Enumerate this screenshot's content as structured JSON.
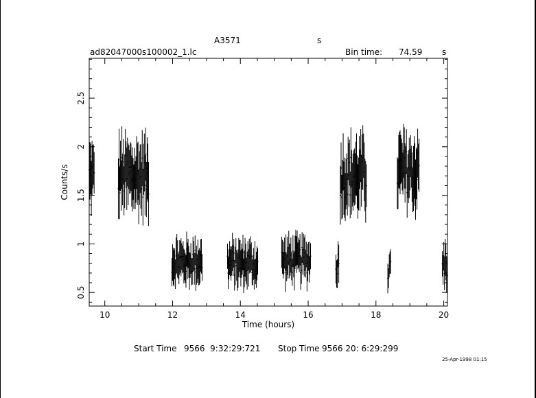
{
  "header": {
    "object": "A3571",
    "units_label": "s",
    "filename": "ad82047000s100002_1.lc",
    "bin_time_label": "Bin time:",
    "bin_time_value": "74.59",
    "bin_time_unit": "s"
  },
  "footer": {
    "start_label": "Start Time",
    "start_value": "9566  9:32:29:721",
    "stop_label": "Stop Time",
    "stop_value": "9566 20: 6:29:299",
    "date_stamp": "25-Apr-1998 01:15"
  },
  "chart_data": {
    "type": "scatter",
    "xlabel": "Time (hours)",
    "ylabel": "Counts/s",
    "xlim": [
      9.54,
      20.11
    ],
    "ylim": [
      0.36,
      2.91
    ],
    "x_ticks": [
      10,
      12,
      14,
      16,
      18,
      20
    ],
    "x_tick_labels": [
      "10",
      "12",
      "14",
      "16",
      "18",
      "20"
    ],
    "y_ticks": [
      0.5,
      1,
      1.5,
      2,
      2.5
    ],
    "y_tick_labels": [
      "0.5",
      "1",
      "1.5",
      "2",
      "2.5"
    ],
    "grid": false,
    "error_bars": true,
    "segments": [
      {
        "start": 9.54,
        "end": 9.7,
        "mean": 1.7,
        "err": 0.22
      },
      {
        "start": 10.4,
        "end": 11.3,
        "mean": 1.7,
        "err": 0.25
      },
      {
        "start": 11.98,
        "end": 12.88,
        "mean": 0.82,
        "err": 0.15
      },
      {
        "start": 13.62,
        "end": 14.52,
        "mean": 0.8,
        "err": 0.15
      },
      {
        "start": 15.22,
        "end": 16.08,
        "mean": 0.83,
        "err": 0.15
      },
      {
        "start": 16.82,
        "end": 16.92,
        "mean": 0.8,
        "err": 0.15
      },
      {
        "start": 16.95,
        "end": 17.72,
        "mean": 1.7,
        "err": 0.25
      },
      {
        "start": 18.35,
        "end": 18.45,
        "mean": 0.72,
        "err": 0.12
      },
      {
        "start": 18.63,
        "end": 19.28,
        "mean": 1.75,
        "err": 0.25
      },
      {
        "start": 19.96,
        "end": 20.11,
        "mean": 0.78,
        "err": 0.15
      }
    ]
  }
}
